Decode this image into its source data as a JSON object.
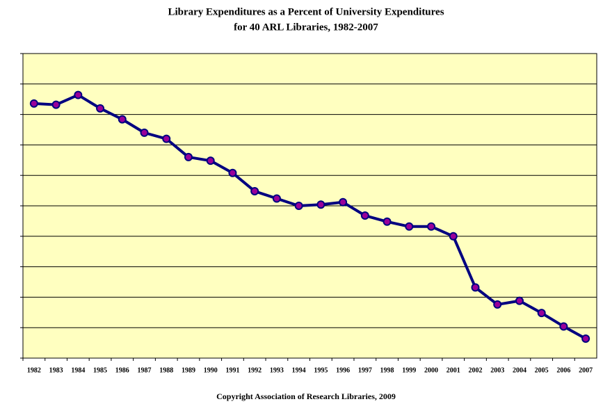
{
  "chart_data": {
    "type": "line",
    "title": [
      "Library Expenditures as a Percent of University Expenditures",
      "for 40 ARL Libraries, 1982-2007"
    ],
    "footer": "Copyright Association of Research Libraries, 2009",
    "categories": [
      "1982",
      "1983",
      "1984",
      "1985",
      "1986",
      "1987",
      "1988",
      "1989",
      "1990",
      "1991",
      "1992",
      "1993",
      "1994",
      "1995",
      "1996",
      "1997",
      "1998",
      "1999",
      "2000",
      "2001",
      "2002",
      "2003",
      "2004",
      "2005",
      "2006",
      "2007"
    ],
    "series": [
      {
        "color": "#000080",
        "marker_color": "#990099",
        "values": [
          3.59,
          3.58,
          3.66,
          3.55,
          3.46,
          3.35,
          3.3,
          3.15,
          3.12,
          3.02,
          2.87,
          2.81,
          2.75,
          2.76,
          2.78,
          2.67,
          2.62,
          2.58,
          2.58,
          2.5,
          2.08,
          1.94,
          1.97,
          1.87,
          1.76,
          1.66
        ]
      }
    ],
    "ylim": [
      1.5,
      4.0
    ],
    "yticks": [
      1.5,
      1.75,
      2.0,
      2.25,
      2.5,
      2.75,
      3.0,
      3.25,
      3.5,
      3.75,
      4.0
    ],
    "grid": true,
    "plot_background": "#ffffc0"
  }
}
